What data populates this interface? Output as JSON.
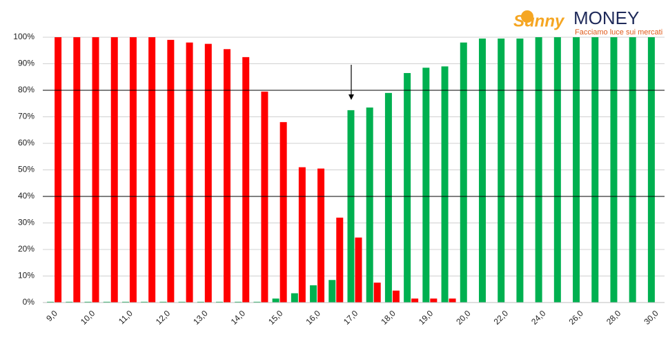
{
  "logo": {
    "brand_a": "Sunny",
    "brand_b": "MONEY",
    "tagline": "Facciamo luce sui mercati"
  },
  "chart_data": {
    "type": "bar",
    "categories": [
      "9,0",
      null,
      "10,0",
      null,
      "11,0",
      null,
      "12,0",
      null,
      "13,0",
      null,
      "14,0",
      null,
      "15,0",
      null,
      "16,0",
      null,
      "17,0",
      null,
      "18,0",
      null,
      "19,0",
      null,
      "20,0",
      null,
      "22,0",
      null,
      "24,0",
      null,
      "26,0",
      null,
      "28,0",
      null,
      "30,0"
    ],
    "series": [
      {
        "color": "#00b050",
        "values": [
          0.3,
          0.3,
          0.3,
          0.3,
          0.3,
          0.3,
          0.3,
          0.3,
          0.3,
          0.3,
          0.3,
          0.3,
          1.5,
          3.5,
          6.5,
          8.5,
          72.5,
          73.5,
          79,
          86.5,
          88.5,
          89,
          98,
          99.5,
          99.5,
          99.5,
          100,
          100,
          100,
          100,
          100,
          100,
          100
        ]
      },
      {
        "color": "#ff0000",
        "values": [
          100,
          100,
          100,
          100,
          100,
          100,
          99,
          98,
          97.5,
          95.5,
          92.5,
          79.5,
          68,
          51,
          50.5,
          32,
          24.5,
          7.5,
          4.5,
          1.5,
          1.5,
          1.5,
          0,
          0,
          0,
          0,
          0,
          0,
          0,
          0,
          0,
          0,
          0
        ]
      }
    ],
    "ylim": [
      0,
      100
    ],
    "yticks": [
      {
        "value": 0,
        "label": "0%"
      },
      {
        "value": 10,
        "label": "10%"
      },
      {
        "value": 20,
        "label": "20%"
      },
      {
        "value": 30,
        "label": "30%"
      },
      {
        "value": 40,
        "label": "40%"
      },
      {
        "value": 50,
        "label": "50%"
      },
      {
        "value": 60,
        "label": "60%"
      },
      {
        "value": 70,
        "label": "70%"
      },
      {
        "value": 80,
        "label": "80%"
      },
      {
        "value": 90,
        "label": "90%"
      },
      {
        "value": 100,
        "label": "100%"
      }
    ],
    "grid": true,
    "reference_lines": [
      80,
      40
    ]
  }
}
